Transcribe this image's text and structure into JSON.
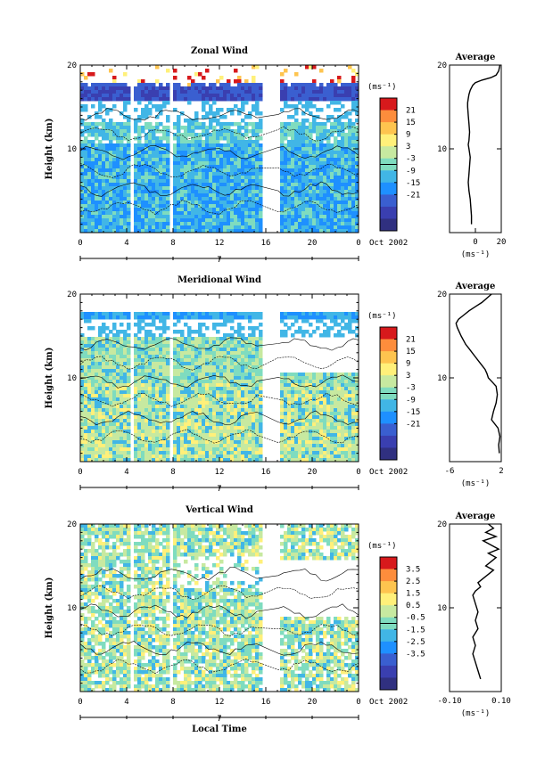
{
  "chart_data": [
    {
      "type": "heatmap",
      "title": "Zonal Wind",
      "ylabel": "Height (km)",
      "ylim": [
        0,
        20
      ],
      "y_ticks": [
        "10",
        "20"
      ],
      "x_ticks": [
        "0",
        "4",
        "8",
        "12",
        "16",
        "20",
        "0"
      ],
      "date_marker": "7",
      "date_label": "Oct 2002",
      "colorbar": {
        "unit": "(ms⁻¹)",
        "labels": [
          "21",
          "15",
          "9",
          "3",
          "-3",
          "-9",
          "-15",
          "-21"
        ],
        "colors": [
          "#d7191c",
          "#fd8d3c",
          "#fec44f",
          "#fff07a",
          "#c7e9a0",
          "#7fdcbf",
          "#41b6e6",
          "#1e90ff",
          "#3a5fd0",
          "#3a3fb0",
          "#303080"
        ]
      },
      "average_profile": {
        "title": "Average",
        "xlabel": "(ms⁻¹)",
        "x_ticks": [
          "0",
          "20"
        ],
        "y_ticks": [
          "10",
          "20"
        ],
        "ylim": [
          0,
          20
        ],
        "xlim": [
          -20,
          20
        ],
        "x": [
          -3,
          -3,
          -3.5,
          -4,
          -5,
          -5.5,
          -5,
          -4.5,
          -4,
          -5,
          -5.5,
          -5,
          -4.5,
          -5,
          -5.5,
          -6,
          -6,
          -5.5,
          -5,
          -4,
          -3,
          -2,
          0,
          5,
          12,
          16,
          18,
          19
        ],
        "y": [
          1.0,
          2.0,
          3.0,
          4.0,
          5.0,
          6.0,
          7.0,
          8.0,
          9.0,
          10.0,
          10.5,
          11.0,
          12.0,
          13.0,
          14.0,
          15.0,
          15.5,
          16.0,
          16.5,
          17.0,
          17.3,
          17.6,
          17.9,
          18.2,
          18.5,
          18.8,
          19.3,
          20.0
        ]
      }
    },
    {
      "type": "heatmap",
      "title": "Meridional Wind",
      "ylabel": "Height (km)",
      "ylim": [
        0,
        20
      ],
      "y_ticks": [
        "10",
        "20"
      ],
      "x_ticks": [
        "0",
        "4",
        "8",
        "12",
        "16",
        "20",
        "0"
      ],
      "date_marker": "7",
      "date_label": "Oct 2002",
      "colorbar": {
        "unit": "(ms⁻¹)",
        "labels": [
          "21",
          "15",
          "9",
          "3",
          "-3",
          "-9",
          "-15",
          "-21"
        ],
        "colors": [
          "#d7191c",
          "#fd8d3c",
          "#fec44f",
          "#fff07a",
          "#c7e9a0",
          "#7fdcbf",
          "#41b6e6",
          "#1e90ff",
          "#3a5fd0",
          "#3a3fb0",
          "#303080"
        ]
      },
      "average_profile": {
        "title": "Average",
        "xlabel": "(ms⁻¹)",
        "x_ticks": [
          "-6",
          "2"
        ],
        "y_ticks": [
          "10",
          "20"
        ],
        "ylim": [
          0,
          20
        ],
        "xlim": [
          -6,
          2
        ],
        "x": [
          1.7,
          1.6,
          1.8,
          1.5,
          0.5,
          0.8,
          1.2,
          1.4,
          1.2,
          0.6,
          0.0,
          -0.2,
          -0.5,
          -1.0,
          -1.5,
          -2.0,
          -2.5,
          -3.0,
          -3.5,
          -4.2,
          -4.8,
          -5.0,
          -4.6,
          -3.8,
          -3.0,
          -2.0,
          -1.0,
          0.5
        ],
        "y": [
          1.0,
          2.0,
          3.0,
          4.0,
          5.0,
          6.0,
          7.0,
          8.0,
          9.0,
          9.5,
          10.0,
          10.5,
          11.0,
          11.5,
          12.0,
          12.5,
          13.0,
          13.5,
          14.0,
          15.0,
          16.0,
          16.5,
          17.0,
          17.5,
          18.0,
          18.5,
          19.0,
          20.0
        ]
      }
    },
    {
      "type": "heatmap",
      "title": "Vertical Wind",
      "ylabel": "Height (km)",
      "xlabel": "Local Time",
      "ylim": [
        0,
        20
      ],
      "y_ticks": [
        "10",
        "20"
      ],
      "x_ticks": [
        "0",
        "4",
        "8",
        "12",
        "16",
        "20",
        "0"
      ],
      "date_marker": "7",
      "date_label": "Oct 2002",
      "colorbar": {
        "unit": "(ms⁻¹)",
        "labels": [
          "3.5",
          "2.5",
          "1.5",
          "0.5",
          "-0.5",
          "-1.5",
          "-2.5",
          "-3.5"
        ],
        "colors": [
          "#d7191c",
          "#fd8d3c",
          "#fec44f",
          "#fff07a",
          "#c7e9a0",
          "#7fdcbf",
          "#41b6e6",
          "#1e90ff",
          "#3a5fd0",
          "#3a3fb0",
          "#303080"
        ]
      },
      "average_profile": {
        "title": "Average",
        "xlabel": "(ms⁻¹)",
        "x_ticks": [
          "-0.10",
          "0.10"
        ],
        "y_ticks": [
          "10",
          "20"
        ],
        "ylim": [
          0,
          20
        ],
        "xlim": [
          -0.1,
          0.1
        ],
        "x": [
          0.02,
          0.01,
          0.0,
          -0.01,
          0.0,
          -0.01,
          0.01,
          0.0,
          0.01,
          0.0,
          -0.01,
          0.0,
          0.02,
          0.01,
          0.03,
          0.05,
          0.07,
          0.04,
          0.06,
          0.08,
          0.05,
          0.09,
          0.06,
          0.03,
          0.08,
          0.04,
          0.07,
          0.05
        ],
        "y": [
          1.5,
          2.5,
          3.5,
          4.5,
          5.5,
          6.5,
          7.5,
          8.5,
          9.5,
          10.5,
          11.5,
          12.0,
          12.5,
          13.0,
          13.5,
          14.0,
          14.5,
          15.0,
          15.5,
          16.0,
          16.5,
          17.0,
          17.5,
          18.0,
          18.5,
          19.0,
          19.5,
          20.0
        ]
      }
    }
  ]
}
